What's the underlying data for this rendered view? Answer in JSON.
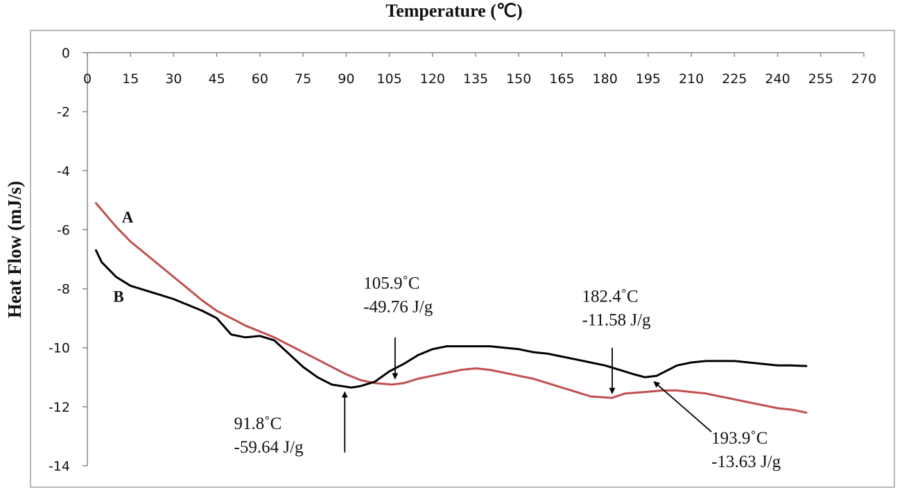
{
  "chart_data": {
    "type": "line",
    "title": "Temperature (℃)",
    "xlabel": "",
    "ylabel": "Heat Flow (mJ/s)",
    "xlim": [
      0,
      270
    ],
    "ylim": [
      -14,
      0
    ],
    "x_ticks": [
      0,
      15,
      30,
      45,
      60,
      75,
      90,
      105,
      120,
      135,
      150,
      165,
      180,
      195,
      210,
      225,
      240,
      255,
      270
    ],
    "y_ticks": [
      0,
      -2,
      -4,
      -6,
      -8,
      -10,
      -12,
      -14
    ],
    "x_axis_position": "top",
    "grid": false,
    "series": [
      {
        "name": "A",
        "color": "#c0504d",
        "x": [
          3,
          10,
          15,
          20,
          25,
          30,
          35,
          40,
          45,
          50,
          55,
          60,
          65,
          70,
          75,
          80,
          85,
          90,
          95,
          100,
          105.9,
          110,
          115,
          120,
          125,
          130,
          135,
          140,
          145,
          150,
          155,
          160,
          165,
          170,
          175,
          182.4,
          187,
          193.9,
          200,
          205,
          210,
          215,
          220,
          225,
          230,
          235,
          240,
          245,
          250
        ],
        "y": [
          -5.1,
          -5.9,
          -6.4,
          -6.8,
          -7.2,
          -7.6,
          -8.0,
          -8.4,
          -8.75,
          -9.0,
          -9.25,
          -9.45,
          -9.65,
          -9.9,
          -10.15,
          -10.4,
          -10.65,
          -10.9,
          -11.1,
          -11.2,
          -11.25,
          -11.2,
          -11.05,
          -10.95,
          -10.85,
          -10.75,
          -10.7,
          -10.75,
          -10.85,
          -10.95,
          -11.05,
          -11.2,
          -11.35,
          -11.5,
          -11.65,
          -11.7,
          -11.55,
          -11.5,
          -11.45,
          -11.45,
          -11.5,
          -11.55,
          -11.65,
          -11.75,
          -11.85,
          -11.95,
          -12.05,
          -12.1,
          -12.2
        ]
      },
      {
        "name": "B",
        "color": "#000000",
        "x": [
          3,
          5,
          10,
          15,
          20,
          25,
          30,
          35,
          40,
          45,
          50,
          55,
          60,
          65,
          70,
          75,
          80,
          85,
          91.8,
          95,
          100,
          105,
          110,
          115,
          120,
          125,
          130,
          135,
          140,
          145,
          150,
          155,
          160,
          165,
          170,
          175,
          180,
          185,
          190,
          193.9,
          198,
          205,
          210,
          215,
          220,
          225,
          230,
          235,
          240,
          245,
          250
        ],
        "y": [
          -6.7,
          -7.1,
          -7.6,
          -7.9,
          -8.05,
          -8.2,
          -8.35,
          -8.55,
          -8.75,
          -9.0,
          -9.55,
          -9.65,
          -9.6,
          -9.75,
          -10.2,
          -10.65,
          -11.0,
          -11.25,
          -11.35,
          -11.3,
          -11.15,
          -10.8,
          -10.55,
          -10.25,
          -10.05,
          -9.95,
          -9.95,
          -9.95,
          -9.95,
          -10.0,
          -10.05,
          -10.15,
          -10.2,
          -10.3,
          -10.4,
          -10.5,
          -10.6,
          -10.75,
          -10.9,
          -11.0,
          -10.95,
          -10.6,
          -10.5,
          -10.45,
          -10.45,
          -10.45,
          -10.5,
          -10.55,
          -10.6,
          -10.6,
          -10.62
        ]
      }
    ],
    "series_labels": [
      {
        "text": "A",
        "x": 12,
        "y": -5.75
      },
      {
        "text": "B",
        "x": 9,
        "y": -8.45
      }
    ],
    "annotations": [
      {
        "lines": [
          "105.9˚C",
          "-49.76 J/g"
        ],
        "text_x": 96,
        "text_y": -8.0,
        "from": [
          107,
          -9.65
        ],
        "to": [
          107,
          -11.05
        ],
        "arrow": "down"
      },
      {
        "lines": [
          "182.4˚C",
          "-11.58 J/g"
        ],
        "text_x": 172,
        "text_y": -8.45,
        "from": [
          182.5,
          -10.0
        ],
        "to": [
          182.5,
          -11.55
        ],
        "arrow": "down"
      },
      {
        "lines": [
          "91.8˚C",
          "-59.64 J/g"
        ],
        "text_x": 51,
        "text_y": -12.75,
        "from": [
          89.5,
          -13.55
        ],
        "to": [
          89.5,
          -11.5
        ],
        "arrow": "up"
      },
      {
        "lines": [
          "193.9˚C",
          "-13.63 J/g"
        ],
        "text_x": 217,
        "text_y": -13.25,
        "from": [
          217,
          -12.85
        ],
        "to": [
          197,
          -11.15
        ],
        "arrow": "up"
      }
    ]
  }
}
